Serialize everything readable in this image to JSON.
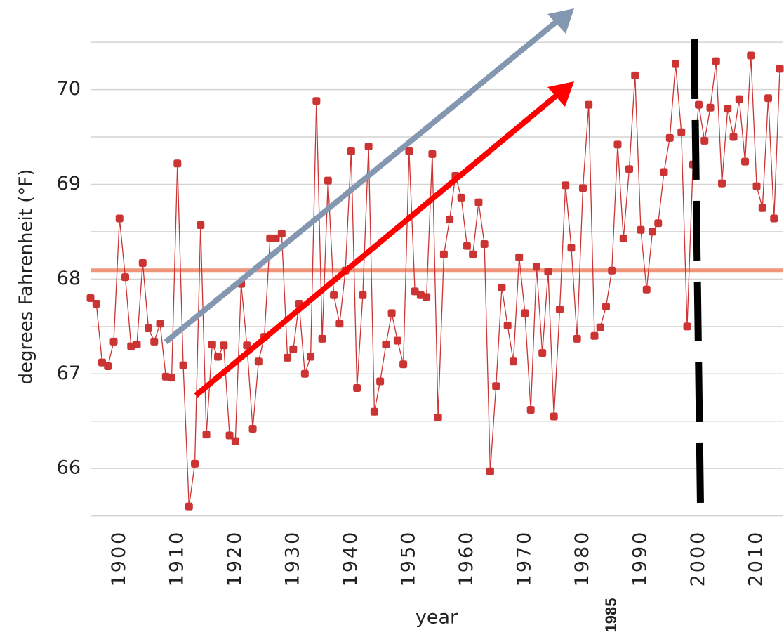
{
  "chart_data": {
    "type": "line",
    "x_label": "year",
    "y_label": "degrees Fahrenheit (°F)",
    "annotation": "1985",
    "x": [
      1895,
      1896,
      1897,
      1898,
      1899,
      1900,
      1901,
      1902,
      1903,
      1904,
      1905,
      1906,
      1907,
      1908,
      1909,
      1910,
      1911,
      1912,
      1913,
      1914,
      1915,
      1916,
      1917,
      1918,
      1919,
      1920,
      1921,
      1922,
      1923,
      1924,
      1925,
      1926,
      1927,
      1928,
      1929,
      1930,
      1931,
      1932,
      1933,
      1934,
      1935,
      1936,
      1937,
      1938,
      1939,
      1940,
      1941,
      1942,
      1943,
      1944,
      1945,
      1946,
      1947,
      1948,
      1949,
      1950,
      1951,
      1952,
      1953,
      1954,
      1955,
      1956,
      1957,
      1958,
      1959,
      1960,
      1961,
      1962,
      1963,
      1964,
      1965,
      1966,
      1967,
      1968,
      1969,
      1970,
      1971,
      1972,
      1973,
      1974,
      1975,
      1976,
      1977,
      1978,
      1979,
      1980,
      1981,
      1982,
      1983,
      1984,
      1985,
      1986,
      1987,
      1988,
      1989,
      1990,
      1991,
      1992,
      1993,
      1994,
      1995,
      1996,
      1997,
      1998,
      1999,
      2000,
      2001,
      2002,
      2003,
      2004,
      2005,
      2006,
      2007,
      2008,
      2009,
      2010,
      2011,
      2012,
      2013,
      2014
    ],
    "values": [
      67.8,
      67.74,
      67.12,
      67.08,
      67.34,
      68.64,
      68.02,
      67.29,
      67.31,
      68.17,
      67.48,
      67.34,
      67.53,
      66.97,
      66.96,
      69.22,
      67.09,
      65.6,
      66.05,
      68.57,
      66.36,
      67.31,
      67.18,
      67.3,
      66.35,
      66.29,
      67.95,
      67.3,
      66.42,
      67.13,
      67.39,
      68.43,
      68.43,
      68.48,
      67.17,
      67.26,
      67.74,
      67.0,
      67.18,
      69.88,
      67.37,
      69.04,
      67.83,
      67.53,
      68.09,
      69.35,
      66.85,
      67.83,
      69.4,
      66.6,
      66.92,
      67.31,
      67.64,
      67.35,
      67.1,
      69.35,
      67.87,
      67.83,
      67.81,
      69.32,
      66.54,
      68.26,
      68.63,
      69.09,
      68.86,
      68.35,
      68.26,
      68.81,
      68.37,
      65.97,
      66.87,
      67.91,
      67.51,
      67.13,
      68.23,
      67.64,
      66.62,
      68.13,
      67.22,
      68.08,
      66.55,
      67.68,
      68.99,
      68.33,
      67.37,
      68.96,
      69.84,
      67.4,
      67.49,
      67.71,
      68.09,
      69.42,
      68.43,
      69.16,
      70.15,
      68.52,
      67.89,
      68.5,
      68.59,
      69.13,
      69.49,
      70.27,
      69.55,
      67.5,
      69.21,
      69.84,
      69.46,
      69.81,
      70.3,
      69.01,
      69.8,
      69.5,
      69.9,
      69.24,
      70.36,
      68.98,
      68.75,
      69.91,
      68.64,
      70.22
    ],
    "color": "#cc3333",
    "hline": {
      "value": 68.09,
      "color": "#f0957a"
    },
    "xlim": [
      1895,
      2014.6
    ],
    "xticks": [
      1900,
      1910,
      1920,
      1930,
      1940,
      1950,
      1960,
      1970,
      1980,
      1990,
      2000,
      2010
    ],
    "ylim": [
      65.46,
      70.59
    ],
    "yticks": [
      66,
      67,
      68,
      69,
      70
    ],
    "ygrid": [
      65.5,
      66,
      66.5,
      67,
      67.5,
      68,
      68.5,
      69,
      69.5,
      70,
      70.5
    ]
  }
}
